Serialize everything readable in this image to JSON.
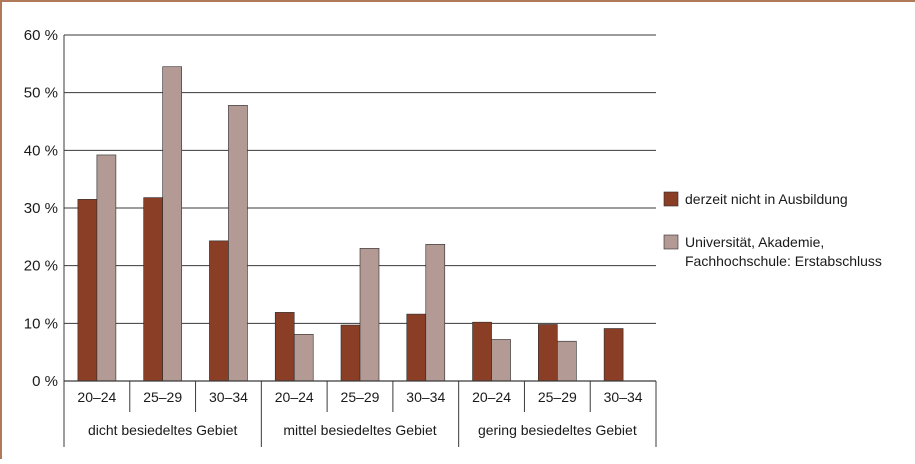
{
  "chart_data": {
    "type": "bar",
    "groups": [
      "dicht besiedeltes Gebiet",
      "mittel besiedeltes Gebiet",
      "gering besiedeltes Gebiet"
    ],
    "categories": [
      "20–24",
      "25–29",
      "30–34",
      "20–24",
      "25–29",
      "30–34",
      "20–24",
      "25–29",
      "30–34"
    ],
    "series": [
      {
        "name": "derzeit nicht in Ausbildung",
        "color": "#8b3e26",
        "values": [
          31.5,
          31.8,
          24.3,
          11.9,
          9.7,
          11.6,
          10.2,
          9.8,
          9.1
        ]
      },
      {
        "name": "Universität, Akademie, Fachhochschule: Erstabschluss",
        "color": "#b39a95",
        "values": [
          39.2,
          54.5,
          47.8,
          8.1,
          23.0,
          23.7,
          7.2,
          6.9,
          null
        ]
      }
    ],
    "yticks": [
      "0 %",
      "10 %",
      "20 %",
      "30 %",
      "40 %",
      "50 %",
      "60 %"
    ],
    "ylim": [
      0,
      60
    ],
    "grid": true,
    "legend": {
      "position": "right",
      "items": [
        {
          "lines": [
            "derzeit nicht in Ausbildung"
          ]
        },
        {
          "lines": [
            "Universität, Akademie,",
            "Fachhochschule: Erstabschluss"
          ]
        }
      ]
    }
  }
}
